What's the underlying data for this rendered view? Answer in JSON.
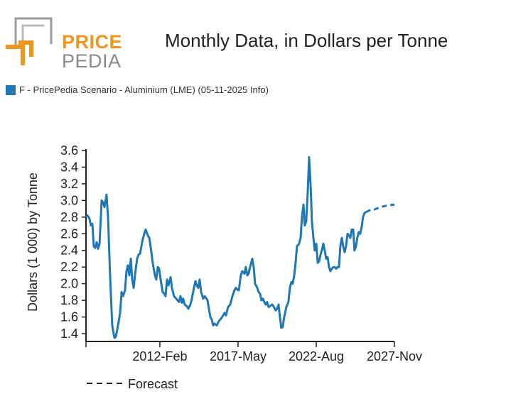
{
  "logo": {
    "word1": "PRICE",
    "word2": "PEDIA"
  },
  "title": "Monthly Data, in Dollars per Tonne",
  "legend": {
    "label": "F - PricePedia Scenario - Aluminium (LME) (05-11-2025 Info)",
    "color": "#1f77b4"
  },
  "forecast_legend": "Forecast",
  "chart_data": {
    "type": "line",
    "title": "Monthly Data, in Dollars per Tonne",
    "xlabel": "",
    "ylabel": "Dollars (1 000) by Tonne",
    "ylim": [
      1.4,
      3.6
    ],
    "xlim": [
      2007.12,
      2027.83
    ],
    "yticks": [
      "3.6",
      "3.4",
      "3.2",
      "3.0",
      "2.8",
      "2.6",
      "2.4",
      "2.2",
      "2.0",
      "1.8",
      "1.6",
      "1.4"
    ],
    "xticks": [
      {
        "label": "",
        "x": 2007.12
      },
      {
        "label": "2012-Feb",
        "x": 2012.08
      },
      {
        "label": "2017-May",
        "x": 2017.33
      },
      {
        "label": "2022-Aug",
        "x": 2022.58
      },
      {
        "label": "2027-Nov",
        "x": 2027.83
      }
    ],
    "series": [
      {
        "name": "F - PricePedia Scenario - Aluminium (LME) (05-11-2025 Info)",
        "style": "solid",
        "color": "#1f77b4",
        "x": [
          2007.12,
          2007.22,
          2007.36,
          2007.45,
          2007.55,
          2007.64,
          2007.74,
          2007.84,
          2007.93,
          2008.03,
          2008.17,
          2008.26,
          2008.36,
          2008.5,
          2008.6,
          2008.74,
          2008.88,
          2009.03,
          2009.12,
          2009.27,
          2009.41,
          2009.51,
          2009.6,
          2009.74,
          2009.84,
          2009.93,
          2010.03,
          2010.13,
          2010.22,
          2010.32,
          2010.41,
          2010.55,
          2010.65,
          2010.75,
          2010.89,
          2011.03,
          2011.13,
          2011.27,
          2011.37,
          2011.51,
          2011.6,
          2011.75,
          2011.84,
          2011.94,
          2012.03,
          2012.13,
          2012.27,
          2012.37,
          2012.46,
          2012.56,
          2012.65,
          2012.8,
          2012.89,
          2013.03,
          2013.18,
          2013.27,
          2013.37,
          2013.46,
          2013.56,
          2013.65,
          2013.75,
          2013.89,
          2013.99,
          2014.13,
          2014.23,
          2014.37,
          2014.47,
          2014.56,
          2014.66,
          2014.75,
          2014.85,
          2014.99,
          2015.09,
          2015.18,
          2015.28,
          2015.37,
          2015.47,
          2015.56,
          2015.66,
          2015.75,
          2015.9,
          2016.04,
          2016.18,
          2016.33,
          2016.42,
          2016.52,
          2016.66,
          2016.8,
          2016.95,
          2017.09,
          2017.18,
          2017.28,
          2017.38,
          2017.52,
          2017.61,
          2017.76,
          2017.85,
          2017.95,
          2018.04,
          2018.14,
          2018.28,
          2018.38,
          2018.47,
          2018.62,
          2018.71,
          2018.81,
          2018.9,
          2019.0,
          2019.09,
          2019.19,
          2019.28,
          2019.38,
          2019.47,
          2019.62,
          2019.71,
          2019.86,
          2019.95,
          2020.05,
          2020.14,
          2020.24,
          2020.33,
          2020.43,
          2020.57,
          2020.71,
          2020.81,
          2020.91,
          2021.0,
          2021.1,
          2021.19,
          2021.29,
          2021.43,
          2021.53,
          2021.62,
          2021.72,
          2021.81,
          2021.91,
          2022.01,
          2022.1,
          2022.2,
          2022.29,
          2022.39,
          2022.48,
          2022.58,
          2022.68,
          2022.77,
          2022.87,
          2022.96,
          2023.06,
          2023.15,
          2023.25,
          2023.34,
          2023.44,
          2023.53,
          2023.63,
          2023.72,
          2023.82,
          2023.92,
          2024.01,
          2024.11,
          2024.2,
          2024.3,
          2024.39,
          2024.49,
          2024.58,
          2024.68,
          2024.77,
          2024.87,
          2024.96,
          2025.06,
          2025.15,
          2025.25,
          2025.34,
          2025.44,
          2025.53,
          2025.63,
          2025.72,
          2025.82,
          2025.91
        ],
        "y": [
          2.8,
          2.82,
          2.78,
          2.7,
          2.72,
          2.45,
          2.43,
          2.5,
          2.42,
          2.48,
          3.0,
          2.98,
          2.92,
          3.07,
          2.8,
          2.1,
          1.5,
          1.35,
          1.36,
          1.5,
          1.65,
          1.9,
          1.85,
          1.92,
          2.15,
          2.22,
          2.1,
          2.3,
          2.05,
          1.95,
          2.1,
          2.3,
          2.35,
          2.36,
          2.5,
          2.6,
          2.65,
          2.58,
          2.55,
          2.38,
          2.25,
          2.1,
          2.05,
          2.2,
          2.18,
          2.05,
          1.9,
          1.88,
          1.85,
          2.05,
          1.98,
          2.08,
          1.95,
          1.85,
          1.82,
          1.8,
          1.78,
          1.85,
          1.77,
          1.82,
          1.75,
          1.73,
          1.7,
          1.75,
          1.82,
          1.95,
          2.03,
          1.98,
          1.95,
          2.05,
          1.9,
          1.82,
          1.85,
          1.83,
          1.8,
          1.7,
          1.6,
          1.57,
          1.5,
          1.52,
          1.5,
          1.55,
          1.58,
          1.62,
          1.65,
          1.62,
          1.72,
          1.75,
          1.85,
          1.92,
          1.95,
          1.93,
          1.92,
          2.1,
          2.15,
          2.12,
          2.2,
          2.1,
          2.12,
          2.2,
          2.3,
          2.2,
          2.0,
          1.95,
          1.9,
          1.88,
          1.8,
          1.82,
          1.78,
          1.75,
          1.78,
          1.72,
          1.73,
          1.75,
          1.73,
          1.68,
          1.7,
          1.75,
          1.6,
          1.47,
          1.48,
          1.6,
          1.72,
          1.78,
          1.95,
          2.02,
          2.0,
          2.1,
          2.25,
          2.45,
          2.48,
          2.55,
          2.8,
          2.95,
          2.7,
          2.75,
          3.1,
          3.52,
          3.2,
          2.75,
          2.55,
          2.4,
          2.48,
          2.25,
          2.27,
          2.35,
          2.4,
          2.48,
          2.4,
          2.3,
          2.32,
          2.2,
          2.15,
          2.18,
          2.2,
          2.2,
          2.18,
          2.2,
          2.2,
          2.45,
          2.55,
          2.45,
          2.38,
          2.45,
          2.6,
          2.58,
          2.55,
          2.65,
          2.65,
          2.4,
          2.45,
          2.55,
          2.62,
          2.6,
          2.68,
          2.8,
          2.85,
          2.86
        ]
      },
      {
        "name": "Forecast",
        "style": "dashed",
        "color": "#1f77b4",
        "x": [
          2025.91,
          2026.15,
          2026.48,
          2026.87,
          2027.34,
          2027.83
        ],
        "y": [
          2.86,
          2.88,
          2.89,
          2.92,
          2.94,
          2.95
        ]
      }
    ]
  }
}
